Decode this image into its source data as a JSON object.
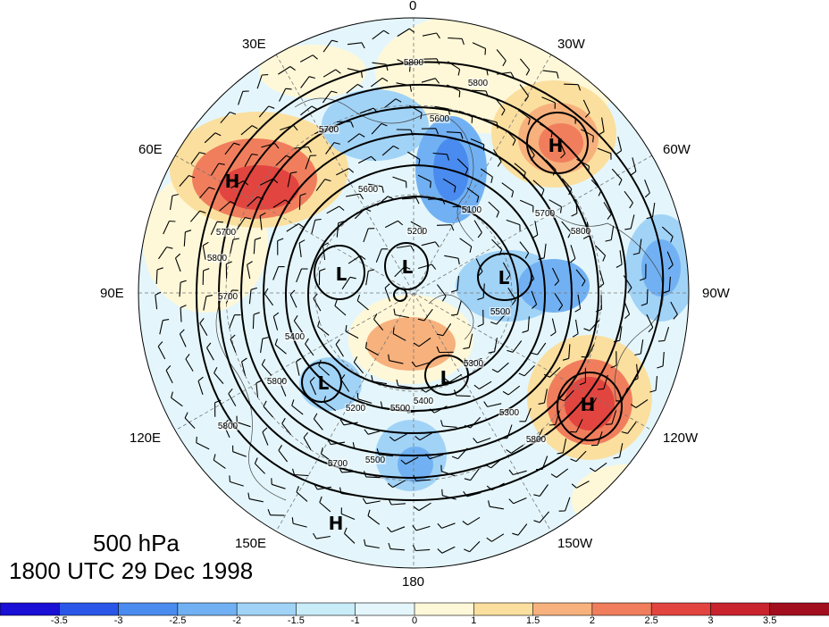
{
  "caption": {
    "level": "500 hPa",
    "time": "1800 UTC 29 Dec 1998"
  },
  "longitude_labels": {
    "lon_0": "0",
    "lon_30w": "30W",
    "lon_60w": "60W",
    "lon_90w": "90W",
    "lon_120w": "120W",
    "lon_150w": "150W",
    "lon_180": "180",
    "lon_150e": "150E",
    "lon_120e": "120E",
    "lon_90e": "90E",
    "lon_60e": "60E",
    "lon_30e": "30E"
  },
  "pressure_systems": [
    {
      "label": "H"
    },
    {
      "label": "H"
    },
    {
      "label": "H"
    },
    {
      "label": "H"
    },
    {
      "label": "L"
    },
    {
      "label": "L"
    },
    {
      "label": "L"
    },
    {
      "label": "L"
    },
    {
      "label": "L"
    }
  ],
  "contour_labels": [
    "5800",
    "5800",
    "5700",
    "5600",
    "5700",
    "5800",
    "5200",
    "5100",
    "5600",
    "5700",
    "5800",
    "5300",
    "5400",
    "5500",
    "5700",
    "5800",
    "5700",
    "5500",
    "5200",
    "5400",
    "5500",
    "5800",
    "5300",
    "5800"
  ],
  "colorbar": {
    "ticks": [
      "-3.5",
      "-3",
      "-2.5",
      "-2",
      "-1.5",
      "-1",
      "0",
      "1",
      "1.5",
      "2",
      "2.5",
      "3",
      "3.5"
    ],
    "colors": [
      "#1a0fd4",
      "#2a57e8",
      "#4a8bef",
      "#71b1f3",
      "#a1d3f7",
      "#c8ecf8",
      "#e4f6fb",
      "#fff8d8",
      "#fbdf9f",
      "#f7b17d",
      "#f07e5d",
      "#e2453f",
      "#c9232e",
      "#a20e1e"
    ]
  }
}
